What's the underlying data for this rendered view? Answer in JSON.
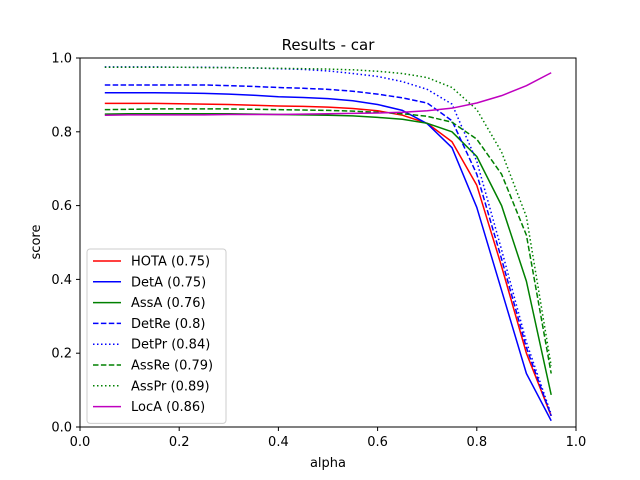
{
  "chart_data": {
    "type": "line",
    "title": "Results - car",
    "xlabel": "alpha",
    "ylabel": "score",
    "xlim": [
      0.0,
      1.0
    ],
    "ylim": [
      0.0,
      1.0
    ],
    "xticks": [
      "0.0",
      "0.2",
      "0.4",
      "0.6",
      "0.8",
      "1.0"
    ],
    "yticks": [
      "0.0",
      "0.2",
      "0.4",
      "0.6",
      "0.8",
      "1.0"
    ],
    "grid": false,
    "legend_position": "lower-left",
    "x": [
      0.05,
      0.1,
      0.15,
      0.2,
      0.25,
      0.3,
      0.35,
      0.4,
      0.45,
      0.5,
      0.55,
      0.6,
      0.65,
      0.7,
      0.75,
      0.8,
      0.85,
      0.9,
      0.95
    ],
    "series": [
      {
        "name": "HOTA (0.75)",
        "color": "#ff0000",
        "dash": "solid",
        "values": [
          0.877,
          0.877,
          0.877,
          0.876,
          0.875,
          0.874,
          0.872,
          0.87,
          0.869,
          0.867,
          0.863,
          0.857,
          0.845,
          0.823,
          0.773,
          0.655,
          0.435,
          0.2,
          0.03
        ]
      },
      {
        "name": "DetA (0.75)",
        "color": "#0000ff",
        "dash": "solid",
        "values": [
          0.906,
          0.906,
          0.906,
          0.905,
          0.904,
          0.902,
          0.899,
          0.895,
          0.893,
          0.89,
          0.884,
          0.874,
          0.858,
          0.822,
          0.757,
          0.595,
          0.37,
          0.145,
          0.017
        ]
      },
      {
        "name": "AssA (0.76)",
        "color": "#008000",
        "dash": "solid",
        "values": [
          0.848,
          0.849,
          0.849,
          0.849,
          0.849,
          0.849,
          0.848,
          0.847,
          0.846,
          0.845,
          0.843,
          0.839,
          0.834,
          0.823,
          0.8,
          0.733,
          0.6,
          0.395,
          0.087
        ]
      },
      {
        "name": "DetRe (0.8)",
        "color": "#0000ff",
        "dash": "dashed",
        "values": [
          0.927,
          0.927,
          0.927,
          0.927,
          0.927,
          0.925,
          0.923,
          0.92,
          0.918,
          0.915,
          0.91,
          0.902,
          0.892,
          0.878,
          0.83,
          0.685,
          0.455,
          0.215,
          0.03
        ]
      },
      {
        "name": "DetPr (0.84)",
        "color": "#0000ff",
        "dash": "dotted",
        "values": [
          0.976,
          0.976,
          0.976,
          0.975,
          0.975,
          0.974,
          0.973,
          0.971,
          0.969,
          0.965,
          0.958,
          0.95,
          0.936,
          0.915,
          0.875,
          0.72,
          0.48,
          0.23,
          0.034
        ]
      },
      {
        "name": "AssRe (0.79)",
        "color": "#008000",
        "dash": "dashed",
        "values": [
          0.86,
          0.861,
          0.862,
          0.862,
          0.862,
          0.862,
          0.861,
          0.86,
          0.859,
          0.858,
          0.856,
          0.853,
          0.849,
          0.842,
          0.826,
          0.78,
          0.685,
          0.52,
          0.145
        ]
      },
      {
        "name": "AssPr (0.89)",
        "color": "#008000",
        "dash": "dotted",
        "values": [
          0.975,
          0.975,
          0.975,
          0.975,
          0.974,
          0.974,
          0.973,
          0.972,
          0.971,
          0.97,
          0.968,
          0.964,
          0.958,
          0.947,
          0.92,
          0.86,
          0.745,
          0.57,
          0.165
        ]
      },
      {
        "name": "LocA (0.86)",
        "color": "#bf00bf",
        "dash": "solid",
        "values": [
          0.845,
          0.846,
          0.846,
          0.846,
          0.846,
          0.847,
          0.847,
          0.847,
          0.848,
          0.849,
          0.85,
          0.851,
          0.853,
          0.857,
          0.864,
          0.878,
          0.898,
          0.925,
          0.96
        ]
      }
    ]
  }
}
